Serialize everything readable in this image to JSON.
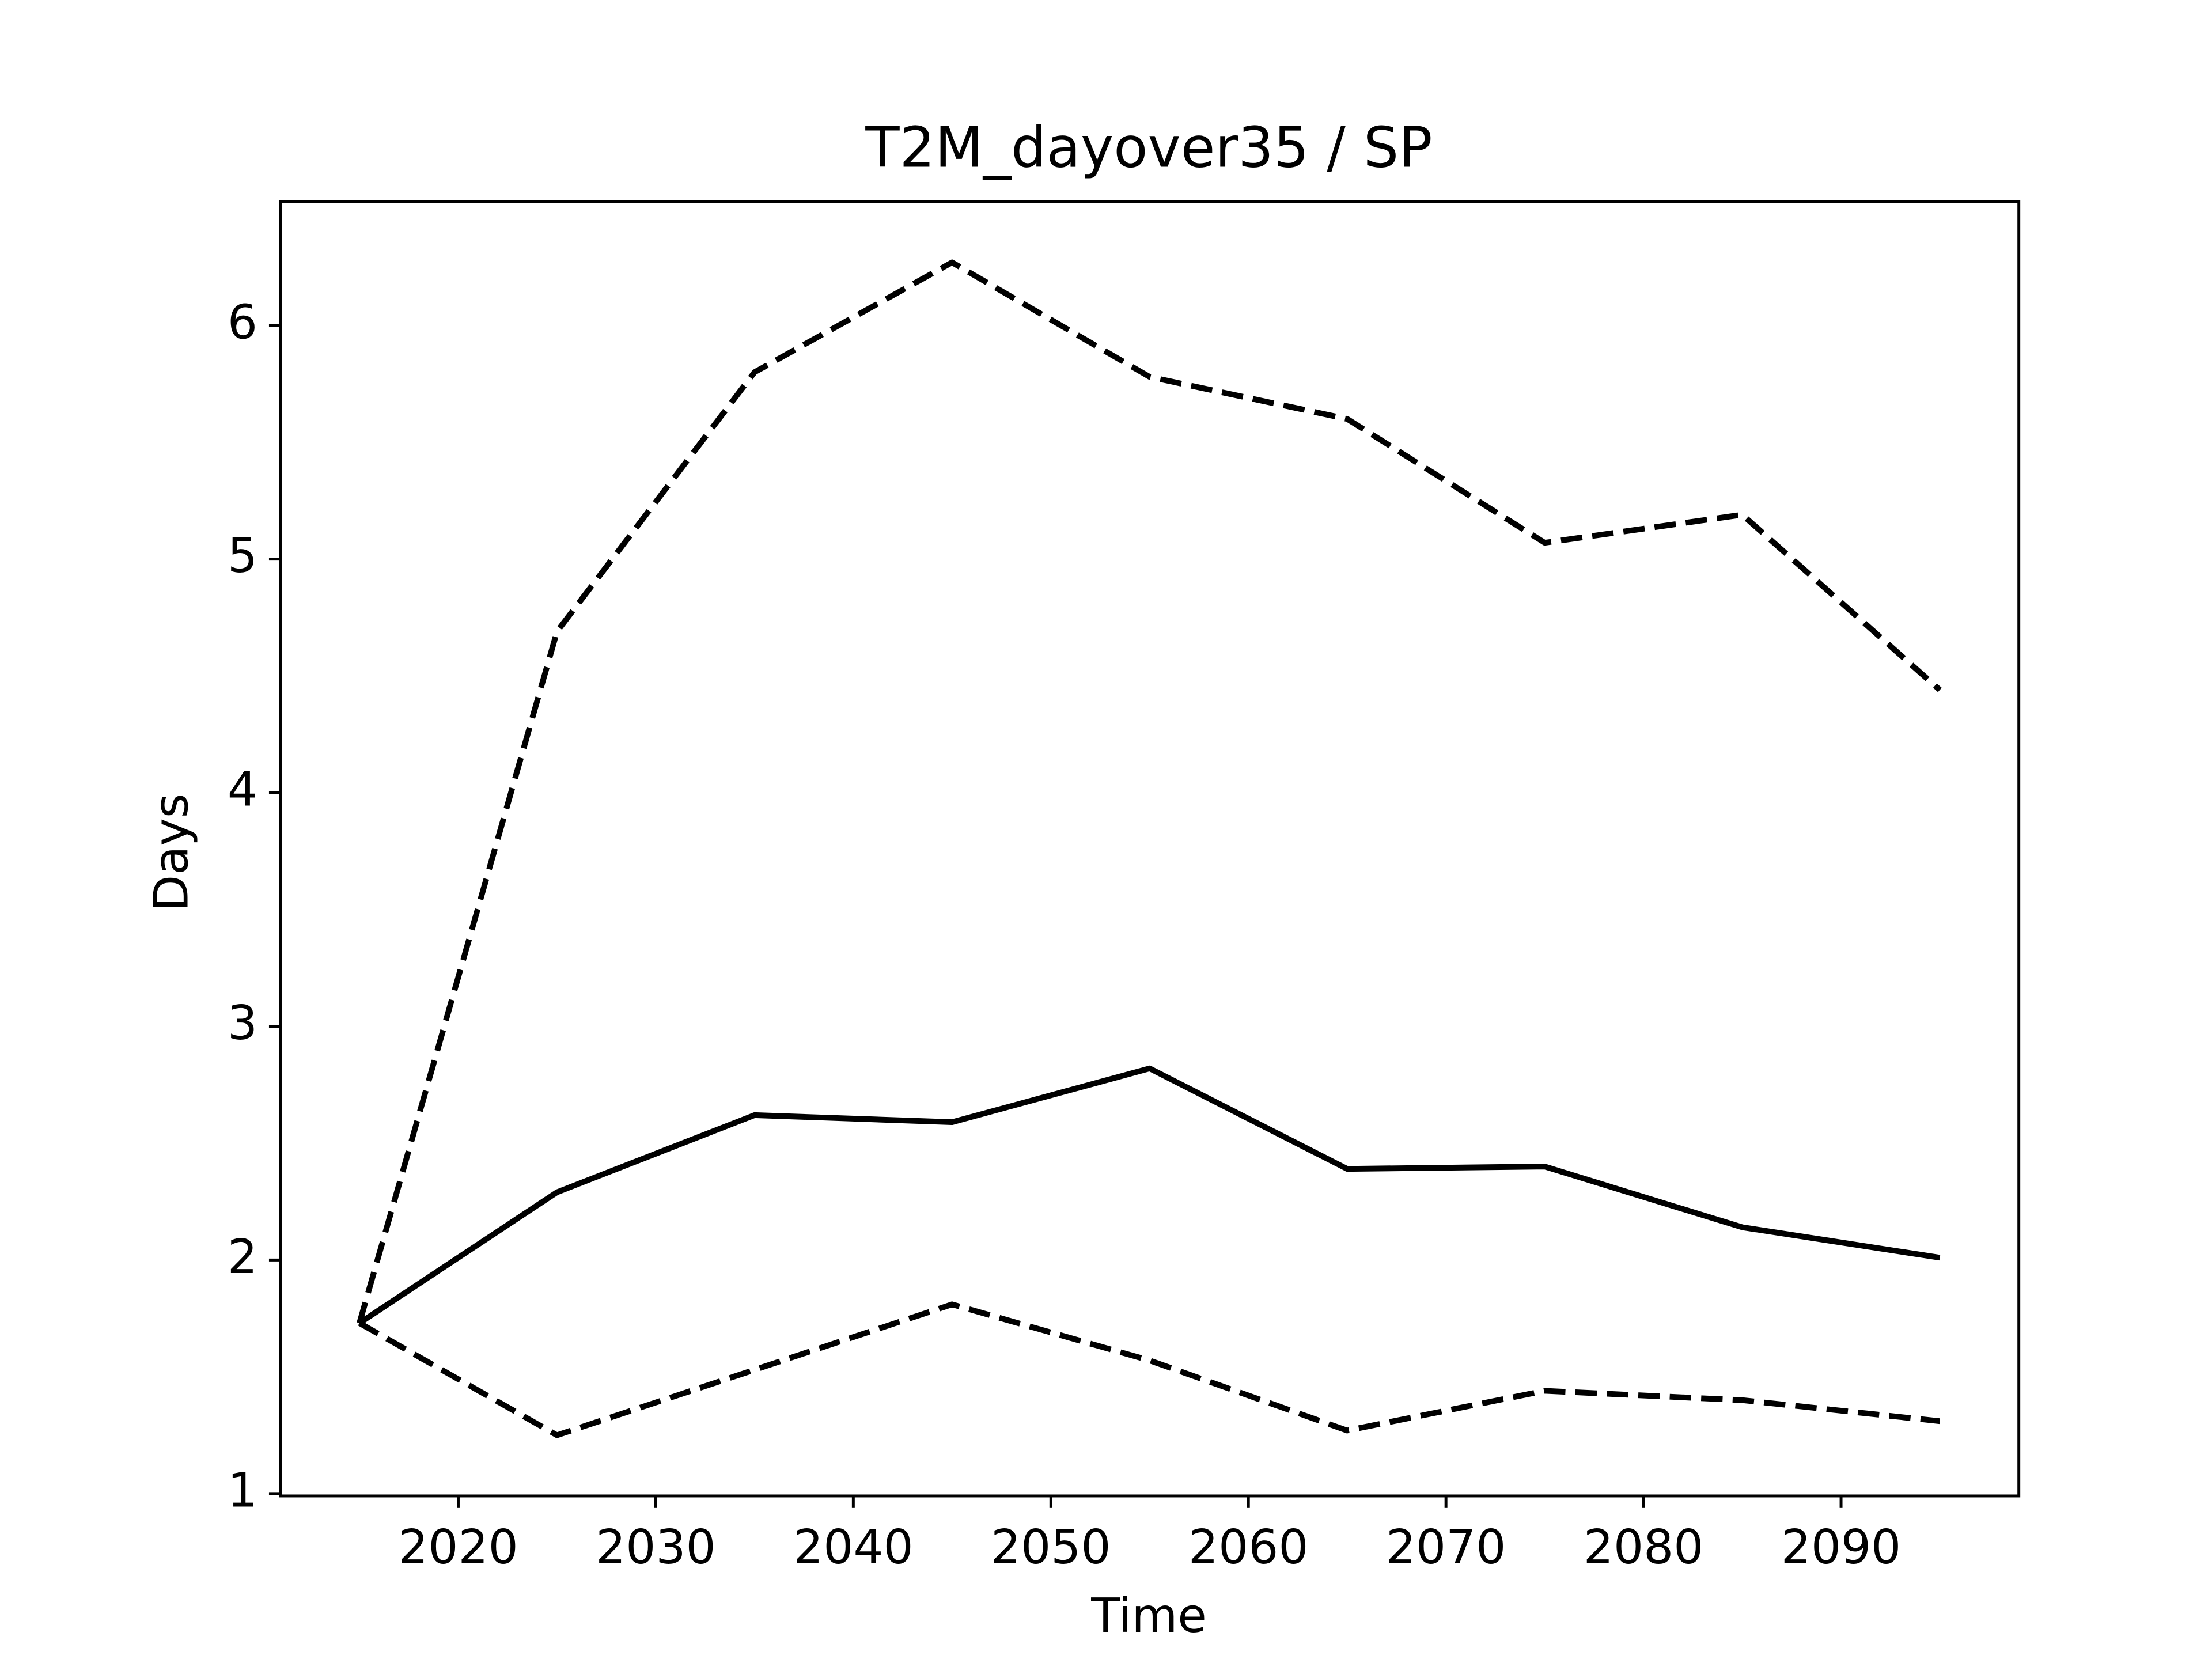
{
  "chart_data": {
    "type": "line",
    "title": "T2M_dayover35 / SP",
    "xlabel": "Time",
    "ylabel": "Days",
    "x": [
      2015,
      2025,
      2035,
      2045,
      2055,
      2065,
      2075,
      2085,
      2095
    ],
    "series": [
      {
        "color": "#000000",
        "style": "solid",
        "values": [
          1.73,
          2.29,
          2.62,
          2.59,
          2.82,
          2.39,
          2.4,
          2.14,
          2.01
        ]
      },
      {
        "color": "#000000",
        "style": "dashed",
        "values": [
          1.73,
          4.69,
          5.8,
          6.27,
          5.78,
          5.6,
          5.07,
          5.19,
          4.44
        ]
      },
      {
        "color": "#000000",
        "style": "dashed",
        "values": [
          1.73,
          1.25,
          1.53,
          1.81,
          1.57,
          1.27,
          1.44,
          1.4,
          1.31
        ]
      }
    ],
    "xlim": [
      2011,
      2099
    ],
    "xticks": [
      2020,
      2030,
      2040,
      2050,
      2060,
      2070,
      2080,
      2090
    ],
    "ylim": [
      0.99,
      6.53
    ],
    "yticks": [
      1,
      2,
      3,
      4,
      5,
      6
    ],
    "grid": false
  }
}
